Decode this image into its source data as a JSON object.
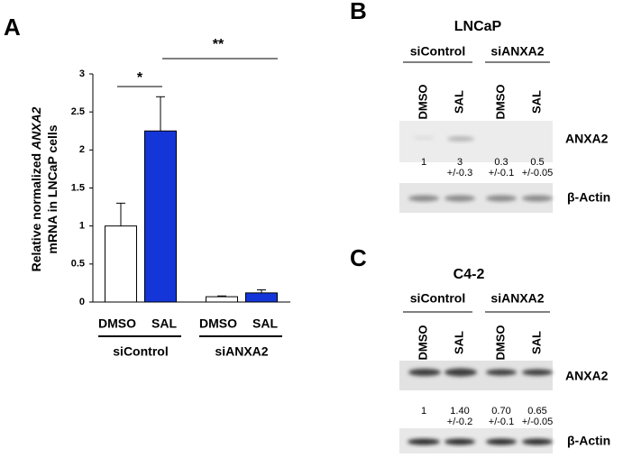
{
  "chart_data": {
    "type": "bar",
    "panel_label": "A",
    "ylabel": {
      "line1": "Relative normalized",
      "gene": "ANXA2",
      "line2": "mRNA in LNCaP cells"
    },
    "groups": [
      "siControl",
      "siANXA2"
    ],
    "series": [
      {
        "name": "DMSO",
        "color": "#ffffff",
        "values": [
          1,
          0.07
        ],
        "errors": [
          0.3,
          0.01
        ]
      },
      {
        "name": "SAL",
        "color": "#1436d8",
        "values": [
          2.25,
          0.12
        ],
        "errors": [
          0.45,
          0.04
        ]
      }
    ],
    "ylim": [
      0,
      3
    ],
    "yticks": [
      0,
      0.5,
      1,
      1.5,
      2,
      2.5,
      3
    ],
    "annotations": [
      {
        "text": "*"
      },
      {
        "text": "**"
      }
    ]
  },
  "panels": [
    {
      "label": "B",
      "title": "LNCaP",
      "groups": [
        "siControl",
        "siANXA2"
      ],
      "lanes": [
        "DMSO",
        "SAL",
        "DMSO",
        "SAL"
      ],
      "bands": [
        "ANXA2",
        "β-Actin"
      ],
      "quant": [
        {
          "value": "1"
        },
        {
          "value": "3",
          "sd": "+/-0.3"
        },
        {
          "value": "0.3",
          "sd": "+/-0.1"
        },
        {
          "value": "0.5",
          "sd": "+/-0.05"
        }
      ]
    },
    {
      "label": "C",
      "title": "C4-2",
      "groups": [
        "siControl",
        "siANXA2"
      ],
      "lanes": [
        "DMSO",
        "SAL",
        "DMSO",
        "SAL"
      ],
      "bands": [
        "ANXA2",
        "β-Actin"
      ],
      "quant": [
        {
          "value": "1"
        },
        {
          "value": "1.40",
          "sd": "+/-0.2"
        },
        {
          "value": "0.70",
          "sd": "+/-0.1"
        },
        {
          "value": "0.65",
          "sd": "+/-0.05"
        }
      ]
    }
  ]
}
